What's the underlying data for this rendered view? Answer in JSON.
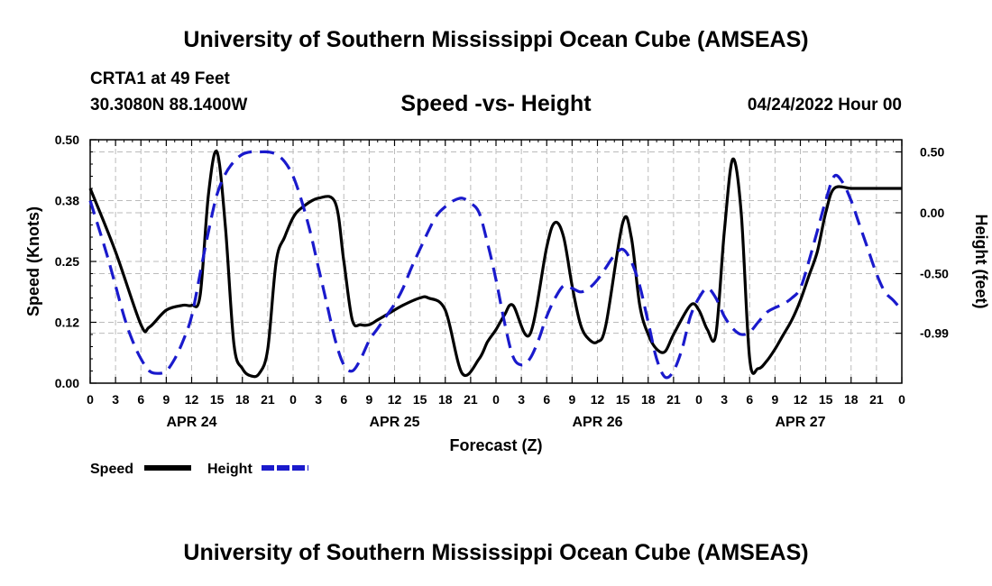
{
  "header": {
    "title": "University of Southern Mississippi Ocean Cube (AMSEAS)",
    "station": "CRTA1 at 49 Feet",
    "coords": "30.3080N  88.1400W",
    "subtitle": "Speed -vs- Height",
    "date": "04/24/2022 Hour 00",
    "footer_title": "University of Southern Mississippi Ocean Cube (AMSEAS)"
  },
  "chart_data": {
    "type": "line",
    "title": "Speed -vs- Height",
    "xlabel": "Forecast (Z)",
    "ylabel": "Speed (Knots)",
    "y2label": "Height (feet)",
    "xlim": [
      0,
      96
    ],
    "ylim": [
      0,
      0.5
    ],
    "y2lim": [
      -1.4,
      0.6
    ],
    "x_ticks": [
      0,
      3,
      6,
      9,
      12,
      15,
      18,
      21,
      24,
      27,
      30,
      33,
      36,
      39,
      42,
      45,
      48,
      51,
      54,
      57,
      60,
      63,
      66,
      69,
      72,
      75,
      78,
      81,
      84,
      87,
      90,
      93,
      96
    ],
    "x_tick_labels": [
      "0",
      "3",
      "6",
      "9",
      "12",
      "15",
      "18",
      "21",
      "0",
      "3",
      "6",
      "9",
      "12",
      "15",
      "18",
      "21",
      "0",
      "3",
      "6",
      "9",
      "12",
      "15",
      "18",
      "21",
      "0",
      "3",
      "6",
      "9",
      "12",
      "15",
      "18",
      "21",
      "0"
    ],
    "y_ticks": [
      0,
      0.125,
      0.25,
      0.375,
      0.5
    ],
    "y_tick_labels": [
      "0.00",
      "0.12",
      "0.25",
      "0.38",
      "0.50"
    ],
    "y2_ticks": [
      -0.99,
      -0.5,
      0.0,
      0.5
    ],
    "y2_tick_labels": [
      "-0.99",
      "-0.50",
      "0.00",
      "0.50"
    ],
    "day_labels": [
      {
        "x": 12,
        "label": "APR 24"
      },
      {
        "x": 36,
        "label": "APR 25"
      },
      {
        "x": 60,
        "label": "APR 26"
      },
      {
        "x": 84,
        "label": "APR 27"
      }
    ],
    "legend": [
      {
        "name": "Speed",
        "color": "#000000",
        "dash": "solid"
      },
      {
        "name": "Height",
        "color": "#1a1acc",
        "dash": "dashed"
      }
    ],
    "series": [
      {
        "name": "Speed",
        "axis": "left",
        "color": "#000000",
        "x": [
          0,
          3,
          6,
          7,
          9,
          11,
          12,
          13,
          14,
          15,
          16,
          17,
          18,
          19,
          20,
          21,
          22,
          23,
          24,
          25,
          27,
          29,
          30,
          31,
          32,
          33,
          34,
          35,
          37,
          39,
          40,
          42,
          44,
          46,
          47,
          48,
          49,
          50,
          52,
          54,
          55,
          56,
          57,
          58,
          59,
          60,
          61,
          63,
          64,
          65,
          66,
          67,
          68,
          69,
          71,
          72,
          73,
          74,
          75,
          76,
          77,
          78,
          79,
          80,
          81,
          82,
          83,
          84,
          85,
          86,
          87,
          88,
          90,
          92,
          94,
          96
        ],
        "values": [
          0.4,
          0.27,
          0.12,
          0.115,
          0.15,
          0.16,
          0.16,
          0.18,
          0.39,
          0.475,
          0.32,
          0.08,
          0.03,
          0.015,
          0.02,
          0.07,
          0.25,
          0.3,
          0.34,
          0.36,
          0.38,
          0.37,
          0.25,
          0.13,
          0.12,
          0.12,
          0.13,
          0.14,
          0.16,
          0.175,
          0.175,
          0.15,
          0.02,
          0.05,
          0.085,
          0.11,
          0.14,
          0.16,
          0.1,
          0.28,
          0.33,
          0.3,
          0.2,
          0.12,
          0.09,
          0.085,
          0.12,
          0.33,
          0.3,
          0.16,
          0.1,
          0.07,
          0.065,
          0.1,
          0.16,
          0.15,
          0.11,
          0.1,
          0.31,
          0.46,
          0.35,
          0.05,
          0.03,
          0.045,
          0.07,
          0.1,
          0.13,
          0.17,
          0.22,
          0.27,
          0.35,
          0.4,
          0.4,
          0.4,
          0.4,
          0.4
        ]
      },
      {
        "name": "Height",
        "axis": "right",
        "color": "#1a1acc",
        "x": [
          0,
          2,
          4,
          5,
          6,
          7,
          8,
          9,
          10,
          11,
          12,
          13,
          14,
          15,
          16,
          17,
          18,
          19,
          20,
          21,
          22,
          23,
          24,
          25,
          26,
          27,
          28,
          29,
          30,
          31,
          32,
          33,
          34,
          35,
          36,
          37,
          38,
          39,
          40,
          41,
          42,
          43,
          44,
          45,
          46,
          47,
          48,
          49,
          50,
          51,
          52,
          53,
          54,
          55,
          56,
          57,
          58,
          59,
          60,
          61,
          62,
          63,
          64,
          65,
          66,
          67,
          68,
          69,
          70,
          71,
          72,
          73,
          74,
          75,
          76,
          77,
          78,
          79,
          80,
          81,
          82,
          83,
          84,
          85,
          86,
          87,
          88,
          89,
          90,
          91,
          92,
          93,
          94,
          95,
          96
        ],
        "values": [
          0.1,
          -0.35,
          -0.85,
          -1.05,
          -1.2,
          -1.3,
          -1.32,
          -1.3,
          -1.2,
          -1.05,
          -0.85,
          -0.5,
          -0.15,
          0.15,
          0.32,
          0.42,
          0.48,
          0.5,
          0.5,
          0.5,
          0.48,
          0.42,
          0.3,
          0.1,
          -0.15,
          -0.45,
          -0.75,
          -1.05,
          -1.25,
          -1.3,
          -1.2,
          -1.05,
          -0.95,
          -0.85,
          -0.75,
          -0.62,
          -0.45,
          -0.3,
          -0.15,
          -0.02,
          0.05,
          0.1,
          0.12,
          0.08,
          0.0,
          -0.25,
          -0.55,
          -0.9,
          -1.18,
          -1.25,
          -1.2,
          -1.05,
          -0.85,
          -0.7,
          -0.6,
          -0.62,
          -0.65,
          -0.62,
          -0.55,
          -0.45,
          -0.35,
          -0.3,
          -0.4,
          -0.6,
          -0.9,
          -1.2,
          -1.35,
          -1.3,
          -1.12,
          -0.85,
          -0.7,
          -0.62,
          -0.7,
          -0.85,
          -0.95,
          -1.0,
          -0.98,
          -0.9,
          -0.82,
          -0.78,
          -0.75,
          -0.7,
          -0.62,
          -0.4,
          -0.15,
          0.1,
          0.3,
          0.25,
          0.1,
          -0.1,
          -0.3,
          -0.5,
          -0.65,
          -0.72,
          -0.8
        ]
      }
    ]
  }
}
